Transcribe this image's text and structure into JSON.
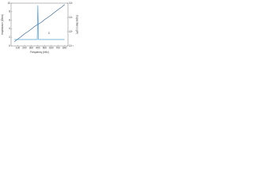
{
  "chart_data": {
    "type": "line",
    "xlabel": "Frequency (kHz)",
    "ylabel": "Impedance (Ohm)",
    "y2label": "Capacitance (pF)",
    "annotation": "C",
    "x": [
      50,
      100,
      150,
      200,
      250,
      300,
      350,
      390,
      400,
      410,
      450,
      500,
      550,
      600,
      650,
      700,
      750,
      800
    ],
    "series": [
      {
        "name": "Capacitance",
        "color": "#2b5c8a",
        "axis": "y2",
        "values": [
          0.2,
          0.3,
          0.45,
          0.7,
          1,
          1.5,
          2.3,
          3,
          3.2,
          3.4,
          4.5,
          7,
          10,
          15,
          23,
          35,
          50,
          80
        ]
      },
      {
        "name": "Impedance",
        "color": "#3a8fc4",
        "axis": "y",
        "values": [
          1.5,
          1.5,
          1.5,
          1.5,
          1.5,
          1.5,
          1.5,
          1.5,
          9.5,
          1.5,
          1.5,
          1.5,
          1.5,
          1.5,
          1.5,
          1.5,
          1.5,
          1.5
        ]
      }
    ],
    "xlim": [
      0,
      850
    ],
    "xticks": [
      100,
      200,
      300,
      400,
      500,
      600,
      700,
      800
    ],
    "ylim": [
      0,
      10
    ],
    "yticks": [
      0,
      2,
      4,
      6,
      8,
      10
    ],
    "y2lim": [
      0.1,
      100
    ],
    "y2scale": "log",
    "y2ticks": [
      {
        "value": 0.1,
        "label": "10⁻¹"
      },
      {
        "value": 1,
        "label": "10⁰"
      },
      {
        "value": 10,
        "label": "10¹"
      },
      {
        "value": 100,
        "label": "10²"
      }
    ],
    "grid": false
  }
}
